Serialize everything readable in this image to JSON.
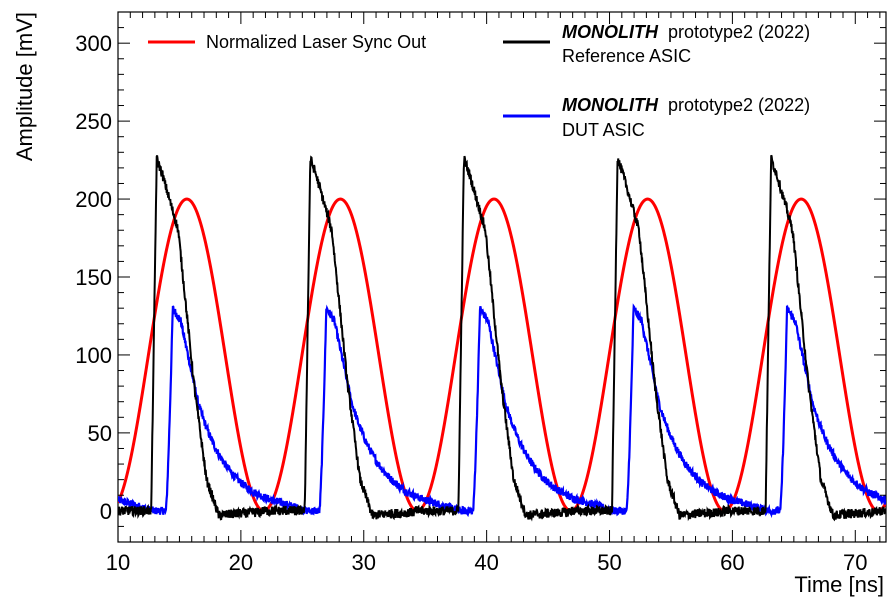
{
  "chart_data": {
    "type": "line",
    "xlabel": "Time [ns]",
    "ylabel": "Amplitude [mV]",
    "xlim": [
      10,
      72.5
    ],
    "ylim": [
      -20,
      320
    ],
    "x_ticks": [
      10,
      20,
      30,
      40,
      50,
      60,
      70
    ],
    "y_ticks": [
      0,
      50,
      100,
      150,
      200,
      250,
      300
    ],
    "grid": false,
    "legend_placement": "top",
    "period_ns": 12.5,
    "series": [
      {
        "name": "Normalized Laser Sync Out",
        "color": "#ff0000",
        "peak_times_ns": [
          15.6,
          28.1,
          40.6,
          53.1,
          65.6
        ],
        "peak_mV": 200,
        "baseline_mV": 0
      },
      {
        "name": "MONOLITH prototype2 (2022) Reference ASIC",
        "name_emphasis": "MONOLITH",
        "name_rest": "prototype2 (2022)",
        "name_line2": "Reference ASIC",
        "color": "#000000",
        "rise_times_ns": [
          12.7,
          25.2,
          37.7,
          50.2,
          62.7
        ],
        "peak_mV": 226,
        "undershoot_mV": -3,
        "baseline_mV": 0
      },
      {
        "name": "MONOLITH prototype2 (2022) DUT ASIC",
        "name_emphasis": "MONOLITH",
        "name_rest": "prototype2 (2022)",
        "name_line2": "DUT ASIC",
        "color": "#0000ff",
        "rise_times_ns": [
          13.9,
          26.4,
          38.9,
          51.4,
          63.9
        ],
        "peak_mV": 128,
        "baseline_mV": 0
      }
    ]
  }
}
